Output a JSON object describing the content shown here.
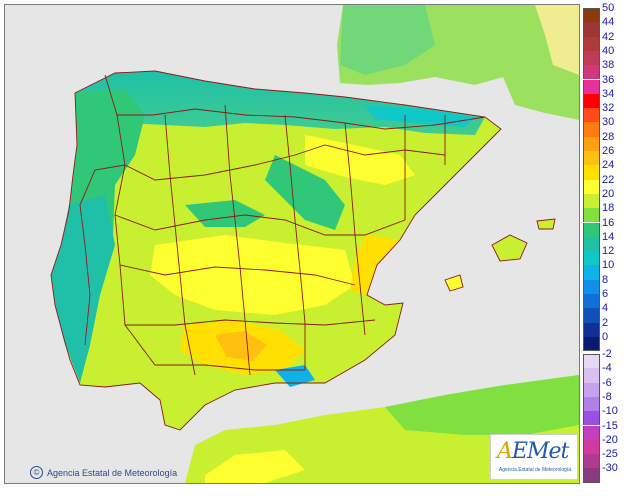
{
  "map": {
    "credit_text": "Agencia Estatal de Meteorología",
    "logo_text_a": "A",
    "logo_text_rest": "EMet",
    "logo_subtitle": "Agencia Estatal de Meteorología",
    "colors": {
      "sea": "#e6e6e6",
      "border": "#8b1a1a",
      "france": "#e3e3a0"
    }
  },
  "legend": {
    "positive": [
      {
        "label": "50",
        "color": "#8b3a0f"
      },
      {
        "label": "44",
        "color": "#a03535"
      },
      {
        "label": "42",
        "color": "#b03a3a"
      },
      {
        "label": "40",
        "color": "#c03a5a"
      },
      {
        "label": "38",
        "color": "#d03a7a"
      },
      {
        "label": "36",
        "color": "#e8309a"
      },
      {
        "label": "34",
        "color": "#ff0000"
      },
      {
        "label": "32",
        "color": "#ff4a1a"
      },
      {
        "label": "30",
        "color": "#ff7a10"
      },
      {
        "label": "28",
        "color": "#ffa010"
      },
      {
        "label": "26",
        "color": "#ffc010"
      },
      {
        "label": "24",
        "color": "#ffe000"
      },
      {
        "label": "22",
        "color": "#ffff30"
      },
      {
        "label": "20",
        "color": "#c8f030"
      },
      {
        "label": "18",
        "color": "#80e040"
      },
      {
        "label": "16",
        "color": "#30c878"
      },
      {
        "label": "14",
        "color": "#20c0a8"
      },
      {
        "label": "12",
        "color": "#10c8c8"
      },
      {
        "label": "10",
        "color": "#10b0e8"
      },
      {
        "label": "8",
        "color": "#1090e8"
      },
      {
        "label": "6",
        "color": "#1070d8"
      },
      {
        "label": "4",
        "color": "#1050b8"
      },
      {
        "label": "2",
        "color": "#103098"
      },
      {
        "label": "0",
        "color": "#0a1a70"
      }
    ],
    "negative": [
      {
        "label": "-2",
        "color": "#e8d8f4"
      },
      {
        "label": "-4",
        "color": "#d8c0f0"
      },
      {
        "label": "-6",
        "color": "#c8a0ec"
      },
      {
        "label": "-8",
        "color": "#b080e8"
      },
      {
        "label": "-10",
        "color": "#9a50e0"
      },
      {
        "label": "-15",
        "color": "#c040c0"
      },
      {
        "label": "-20",
        "color": "#d03aa0"
      },
      {
        "label": "-25",
        "color": "#b03a90"
      },
      {
        "label": "-30",
        "color": "#8a3a80"
      }
    ]
  }
}
